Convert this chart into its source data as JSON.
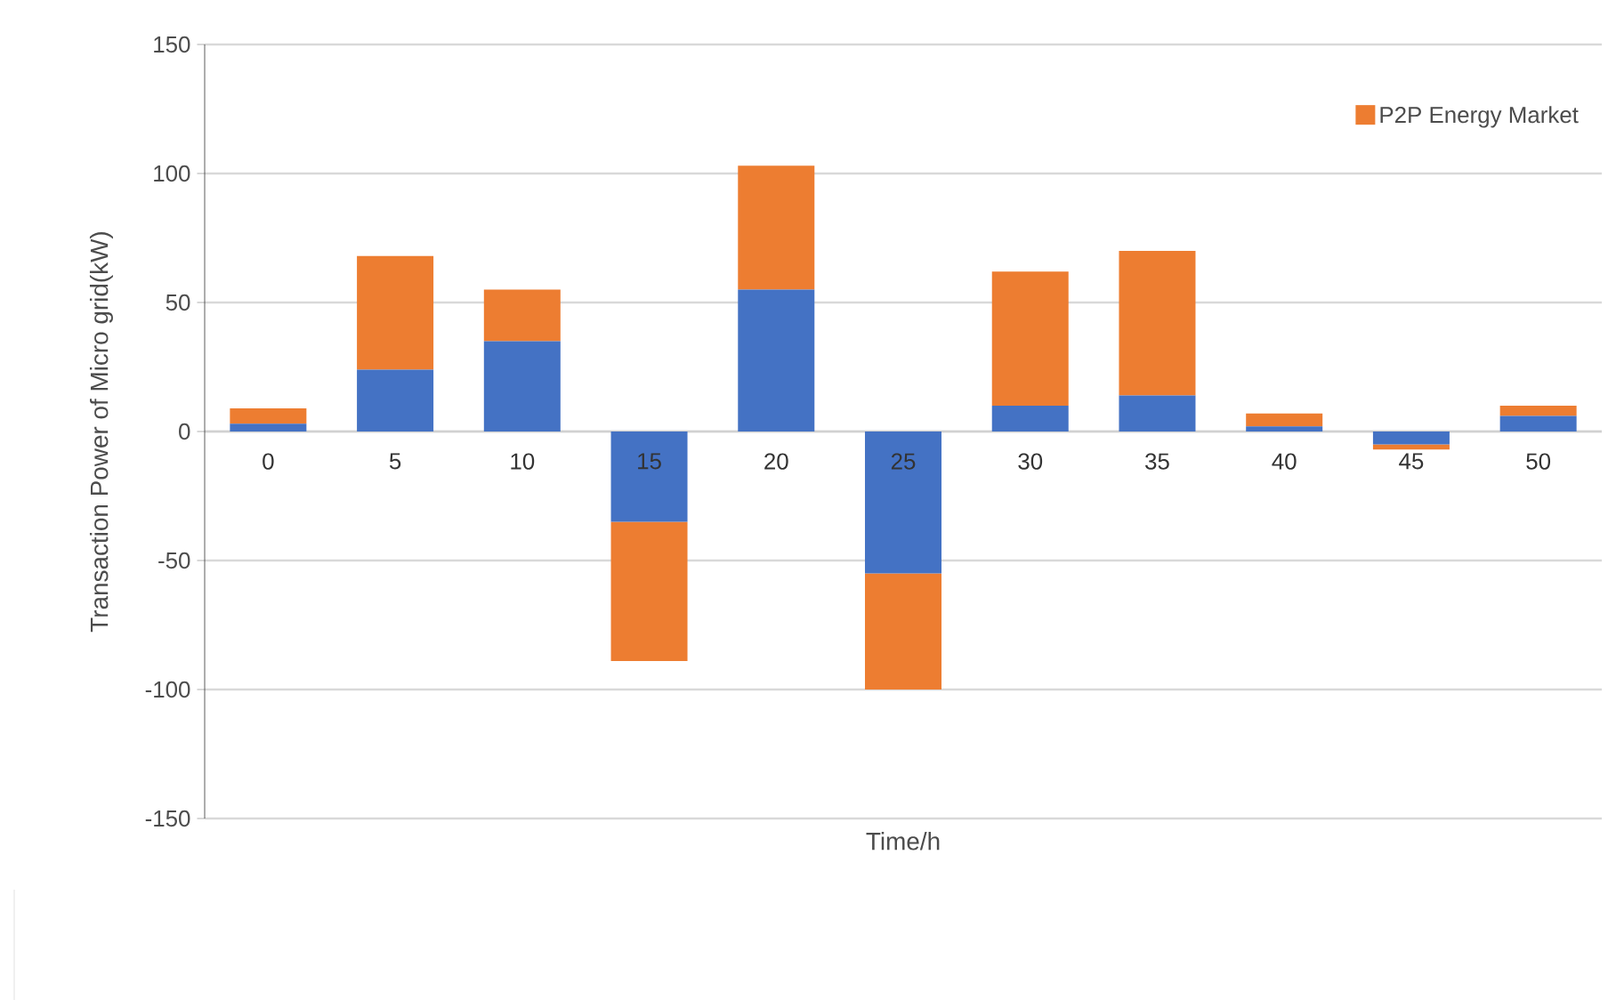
{
  "chart_data": {
    "type": "bar",
    "stacked": true,
    "xlabel": "Time/h",
    "ylabel": "Transaction Power  of Micro grid(kW)",
    "categories": [
      "0",
      "5",
      "10",
      "15",
      "20",
      "25",
      "30",
      "35",
      "40",
      "45",
      "50"
    ],
    "series": [
      {
        "color": "#4472c4",
        "values": [
          3,
          24,
          35,
          -35,
          55,
          -55,
          10,
          14,
          2,
          -5,
          6
        ]
      },
      {
        "name": "P2P Energy Market",
        "color": "#ed7d31",
        "values": [
          6,
          44,
          20,
          -54,
          48,
          -45,
          52,
          56,
          5,
          -2,
          4
        ]
      }
    ],
    "ylim": [
      -150,
      150
    ],
    "yticks": [
      -150,
      -100,
      -50,
      0,
      50,
      100,
      150
    ],
    "grid": "y",
    "legend": "top right"
  }
}
